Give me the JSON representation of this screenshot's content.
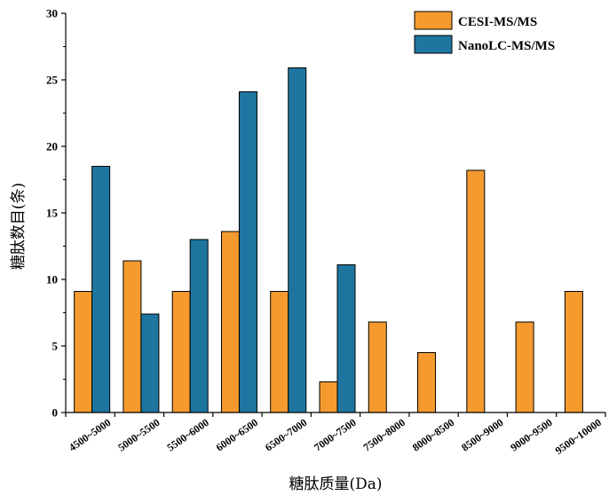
{
  "chart_data": {
    "type": "bar",
    "xlabel": "糖肽质量(Da)",
    "ylabel": "糖肽数目(条)",
    "ylim": [
      0,
      30
    ],
    "yticks": [
      "0",
      "5",
      "10",
      "15",
      "20",
      "25",
      "30"
    ],
    "legend_position": "top-right",
    "grid": false,
    "categories": [
      "4500~5000",
      "5000~5500",
      "5500~6000",
      "6000~6500",
      "6500~7000",
      "7000~7500",
      "7500~8000",
      "8000~8500",
      "8500~9000",
      "9000~9500",
      "9500~10000"
    ],
    "series": [
      {
        "name": "CESI-MS/MS",
        "color": "#F59A2F",
        "values": [
          9.1,
          11.4,
          9.1,
          13.6,
          9.1,
          2.3,
          6.8,
          4.5,
          18.2,
          6.8,
          9.1
        ]
      },
      {
        "name": "NanoLC-MS/MS",
        "color": "#1E76A0",
        "values": [
          18.5,
          7.4,
          13.0,
          24.1,
          25.9,
          11.1,
          0,
          0,
          0,
          0,
          0
        ]
      }
    ]
  }
}
